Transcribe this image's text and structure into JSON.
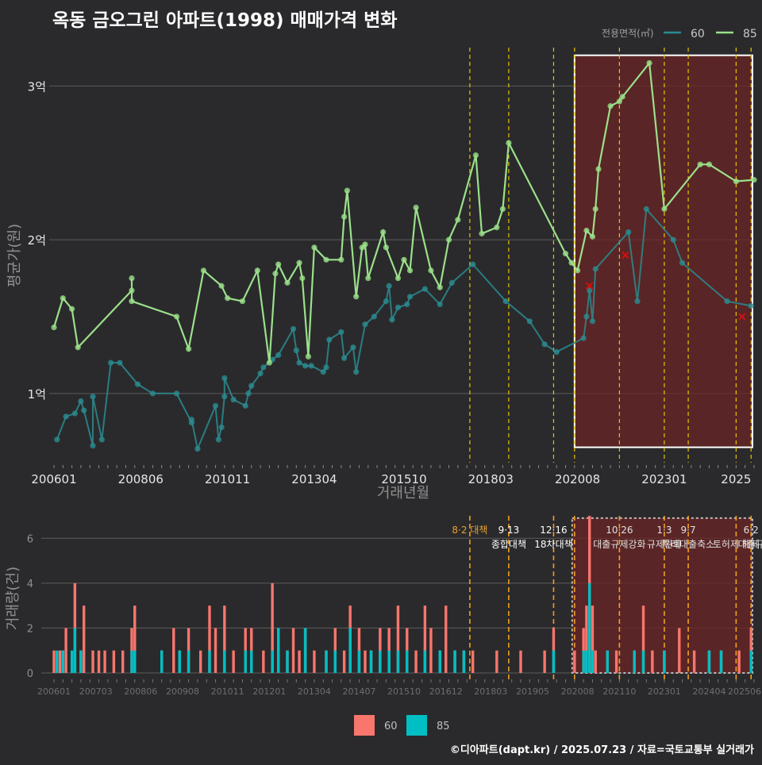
{
  "title": "옥동 금오그린 아파트(1998) 매매가격 변화",
  "footer": "©디아파트(dapt.kr) / 2025.07.23 / 자료=국토교통부 실거래가",
  "colors": {
    "bg": "#2a2a2c",
    "grid": "#5c5c5c",
    "s60": "#2a8c91",
    "s85": "#9be08a",
    "vol60": "#f8766d",
    "vol85": "#00bfc4",
    "policy": "#e5c400",
    "policy_low": "#f0a020",
    "highlight": "#6b2424",
    "marker": "#d01010"
  },
  "chart_data": [
    {
      "type": "line",
      "title": "",
      "xlabel": "거래년월",
      "ylabel": "평균가(원)",
      "legend": {
        "title": "전용면적(㎡)",
        "entries": [
          "60",
          "85"
        ],
        "position": "top-right"
      },
      "x_ticks": [
        "200601",
        "200806",
        "201011",
        "201304",
        "201510",
        "201803",
        "202008",
        "202301",
        "2025"
      ],
      "y_ticks": [
        {
          "value": 1.0,
          "label": "1억"
        },
        {
          "value": 2.0,
          "label": "2억"
        },
        {
          "value": 3.0,
          "label": "3억"
        }
      ],
      "ylim": [
        0.55,
        3.25
      ],
      "policy_dates": [
        "2017.08",
        "2018.09",
        "2019.12",
        "2020.07",
        "2021.10",
        "2023.01",
        "2023.09",
        "2025.01",
        "2025.06"
      ],
      "highlight_period": [
        "2020.07",
        "2025.07"
      ],
      "series": [
        {
          "name": "60",
          "points": [
            [
              "2006.02",
              0.7
            ],
            [
              "2006.05",
              0.85
            ],
            [
              "2006.08",
              0.87
            ],
            [
              "2006.10",
              0.95
            ],
            [
              "2006.11",
              0.89
            ],
            [
              "2007.02",
              0.66
            ],
            [
              "2007.02",
              0.98
            ],
            [
              "2007.05",
              0.7
            ],
            [
              "2007.08",
              1.2
            ],
            [
              "2007.11",
              1.2
            ],
            [
              "2008.05",
              1.06
            ],
            [
              "2008.10",
              1.0
            ],
            [
              "2009.06",
              1.0
            ],
            [
              "2009.11",
              0.81
            ],
            [
              "2009.11",
              0.83
            ],
            [
              "2010.01",
              0.64
            ],
            [
              "2010.07",
              0.92
            ],
            [
              "2010.08",
              0.7
            ],
            [
              "2010.09",
              0.78
            ],
            [
              "2010.10",
              0.98
            ],
            [
              "2010.10",
              1.1
            ],
            [
              "2011.01",
              0.96
            ],
            [
              "2011.05",
              0.92
            ],
            [
              "2011.06",
              1.0
            ],
            [
              "2011.07",
              1.05
            ],
            [
              "2011.10",
              1.13
            ],
            [
              "2011.11",
              1.17
            ],
            [
              "2012.02",
              1.22
            ],
            [
              "2012.04",
              1.25
            ],
            [
              "2012.09",
              1.42
            ],
            [
              "2012.10",
              1.28
            ],
            [
              "2012.11",
              1.2
            ],
            [
              "2013.01",
              1.18
            ],
            [
              "2013.03",
              1.18
            ],
            [
              "2013.07",
              1.14
            ],
            [
              "2013.08",
              1.17
            ],
            [
              "2013.09",
              1.35
            ],
            [
              "2014.01",
              1.4
            ],
            [
              "2014.02",
              1.23
            ],
            [
              "2014.05",
              1.3
            ],
            [
              "2014.06",
              1.14
            ],
            [
              "2014.09",
              1.45
            ],
            [
              "2014.12",
              1.5
            ],
            [
              "2015.04",
              1.6
            ],
            [
              "2015.05",
              1.7
            ],
            [
              "2015.06",
              1.48
            ],
            [
              "2015.08",
              1.56
            ],
            [
              "2015.11",
              1.58
            ],
            [
              "2015.12",
              1.63
            ],
            [
              "2016.05",
              1.68
            ],
            [
              "2016.10",
              1.58
            ],
            [
              "2017.02",
              1.72
            ],
            [
              "2017.09",
              1.84
            ],
            [
              "2018.08",
              1.6
            ],
            [
              "2019.04",
              1.47
            ],
            [
              "2019.09",
              1.32
            ],
            [
              "2020.01",
              1.27
            ],
            [
              "2020.10",
              1.36
            ],
            [
              "2020.11",
              1.5
            ],
            [
              "2020.12",
              1.67
            ],
            [
              "2021.01",
              1.47
            ],
            [
              "2021.02",
              1.81
            ],
            [
              "2022.01",
              2.05
            ],
            [
              "2022.04",
              1.6
            ],
            [
              "2022.07",
              2.2
            ],
            [
              "2023.04",
              2.0
            ],
            [
              "2023.07",
              1.85
            ],
            [
              "2024.10",
              1.6
            ],
            [
              "2025.06",
              1.57
            ]
          ]
        },
        {
          "name": "85",
          "points": [
            [
              "2006.01",
              1.43
            ],
            [
              "2006.04",
              1.62
            ],
            [
              "2006.07",
              1.55
            ],
            [
              "2006.09",
              1.3
            ],
            [
              "2008.03",
              1.67
            ],
            [
              "2008.03",
              1.75
            ],
            [
              "2008.03",
              1.6
            ],
            [
              "2009.06",
              1.5
            ],
            [
              "2009.10",
              1.29
            ],
            [
              "2010.03",
              1.8
            ],
            [
              "2010.09",
              1.7
            ],
            [
              "2010.11",
              1.62
            ],
            [
              "2011.04",
              1.6
            ],
            [
              "2011.09",
              1.8
            ],
            [
              "2012.01",
              1.2
            ],
            [
              "2012.03",
              1.78
            ],
            [
              "2012.04",
              1.84
            ],
            [
              "2012.07",
              1.72
            ],
            [
              "2012.11",
              1.85
            ],
            [
              "2012.12",
              1.75
            ],
            [
              "2013.02",
              1.24
            ],
            [
              "2013.04",
              1.95
            ],
            [
              "2013.08",
              1.87
            ],
            [
              "2014.01",
              1.87
            ],
            [
              "2014.02",
              2.15
            ],
            [
              "2014.03",
              2.32
            ],
            [
              "2014.06",
              1.63
            ],
            [
              "2014.08",
              1.95
            ],
            [
              "2014.09",
              1.97
            ],
            [
              "2014.10",
              1.75
            ],
            [
              "2015.03",
              2.05
            ],
            [
              "2015.04",
              1.95
            ],
            [
              "2015.08",
              1.75
            ],
            [
              "2015.10",
              1.87
            ],
            [
              "2015.12",
              1.8
            ],
            [
              "2016.02",
              2.21
            ],
            [
              "2016.07",
              1.8
            ],
            [
              "2016.10",
              1.69
            ],
            [
              "2017.01",
              2.0
            ],
            [
              "2017.04",
              2.13
            ],
            [
              "2017.10",
              2.55
            ],
            [
              "2017.12",
              2.04
            ],
            [
              "2018.05",
              2.08
            ],
            [
              "2018.07",
              2.2
            ],
            [
              "2018.09",
              2.63
            ],
            [
              "2020.04",
              1.91
            ],
            [
              "2020.06",
              1.85
            ],
            [
              "2020.08",
              1.8
            ],
            [
              "2020.11",
              2.06
            ],
            [
              "2021.01",
              2.02
            ],
            [
              "2021.02",
              2.2
            ],
            [
              "2021.03",
              2.46
            ],
            [
              "2021.07",
              2.87
            ],
            [
              "2021.10",
              2.9
            ],
            [
              "2021.11",
              2.93
            ],
            [
              "2022.08",
              3.15
            ],
            [
              "2023.01",
              2.2
            ],
            [
              "2024.01",
              2.49
            ],
            [
              "2024.04",
              2.49
            ],
            [
              "2025.01",
              2.38
            ],
            [
              "2025.07",
              2.39
            ]
          ]
        }
      ],
      "markers": [
        [
          "2020.12",
          1.7
        ],
        [
          "2021.12",
          1.9
        ],
        [
          "2025.03",
          1.5
        ]
      ]
    },
    {
      "type": "bar",
      "title": "",
      "xlabel": "",
      "ylabel": "거래량(건)",
      "x_ticks": [
        "200601",
        "200703",
        "200806",
        "200908",
        "201011",
        "201201",
        "201304",
        "201407",
        "201510",
        "201612",
        "201803",
        "201905",
        "202008",
        "202110",
        "202301",
        "202404",
        "202506"
      ],
      "y_ticks": [
        0,
        2,
        4,
        6
      ],
      "ylim": [
        0,
        7
      ],
      "legend": {
        "entries": [
          "60",
          "85"
        ],
        "position": "bottom"
      },
      "series_names": [
        "60",
        "85"
      ],
      "bars": [
        [
          "2006.01",
          1,
          0
        ],
        [
          "2006.02",
          0,
          1
        ],
        [
          "2006.03",
          1,
          0
        ],
        [
          "2006.04",
          1,
          1
        ],
        [
          "2006.05",
          2,
          0
        ],
        [
          "2006.07",
          0,
          1
        ],
        [
          "2006.08",
          4,
          2
        ],
        [
          "2006.10",
          1,
          1
        ],
        [
          "2006.11",
          3,
          0
        ],
        [
          "2007.02",
          1,
          0
        ],
        [
          "2007.04",
          1,
          0
        ],
        [
          "2007.06",
          1,
          0
        ],
        [
          "2007.09",
          1,
          0
        ],
        [
          "2007.12",
          1,
          0
        ],
        [
          "2008.03",
          2,
          1
        ],
        [
          "2008.04",
          3,
          1
        ],
        [
          "2009.01",
          1,
          1
        ],
        [
          "2009.05",
          2,
          0
        ],
        [
          "2009.07",
          1,
          1
        ],
        [
          "2009.10",
          2,
          1
        ],
        [
          "2010.02",
          1,
          0
        ],
        [
          "2010.05",
          3,
          1
        ],
        [
          "2010.07",
          2,
          0
        ],
        [
          "2010.10",
          3,
          1
        ],
        [
          "2011.01",
          1,
          0
        ],
        [
          "2011.05",
          2,
          1
        ],
        [
          "2011.07",
          2,
          1
        ],
        [
          "2011.11",
          1,
          0
        ],
        [
          "2012.02",
          4,
          1
        ],
        [
          "2012.04",
          2,
          2
        ],
        [
          "2012.07",
          1,
          1
        ],
        [
          "2012.09",
          2,
          0
        ],
        [
          "2012.11",
          1,
          0
        ],
        [
          "2013.01",
          2,
          2
        ],
        [
          "2013.04",
          1,
          0
        ],
        [
          "2013.08",
          1,
          1
        ],
        [
          "2013.11",
          2,
          1
        ],
        [
          "2014.02",
          1,
          0
        ],
        [
          "2014.04",
          3,
          2
        ],
        [
          "2014.07",
          2,
          1
        ],
        [
          "2014.09",
          1,
          0
        ],
        [
          "2014.11",
          1,
          1
        ],
        [
          "2015.02",
          2,
          1
        ],
        [
          "2015.05",
          2,
          1
        ],
        [
          "2015.08",
          3,
          1
        ],
        [
          "2015.11",
          2,
          1
        ],
        [
          "2016.02",
          1,
          0
        ],
        [
          "2016.05",
          3,
          1
        ],
        [
          "2016.07",
          2,
          0
        ],
        [
          "2016.10",
          1,
          1
        ],
        [
          "2016.12",
          3,
          0
        ],
        [
          "2017.03",
          1,
          1
        ],
        [
          "2017.06",
          1,
          1
        ],
        [
          "2017.09",
          1,
          0
        ],
        [
          "2018.05",
          1,
          0
        ],
        [
          "2019.01",
          1,
          0
        ],
        [
          "2019.09",
          1,
          0
        ],
        [
          "2019.12",
          2,
          1
        ],
        [
          "2020.07",
          1,
          0
        ],
        [
          "2020.10",
          2,
          1
        ],
        [
          "2020.11",
          3,
          1
        ],
        [
          "2020.12",
          7,
          4
        ],
        [
          "2021.01",
          3,
          1
        ],
        [
          "2021.02",
          1,
          0
        ],
        [
          "2021.06",
          1,
          1
        ],
        [
          "2021.09",
          1,
          0
        ],
        [
          "2022.03",
          1,
          1
        ],
        [
          "2022.06",
          3,
          1
        ],
        [
          "2022.09",
          1,
          0
        ],
        [
          "2023.01",
          1,
          1
        ],
        [
          "2023.06",
          2,
          0
        ],
        [
          "2023.11",
          1,
          0
        ],
        [
          "2024.04",
          1,
          1
        ],
        [
          "2024.08",
          1,
          1
        ],
        [
          "2025.02",
          1,
          0
        ],
        [
          "2025.06",
          2,
          1
        ]
      ],
      "annotations": [
        {
          "date": "2017.08",
          "lines": [
            "8·2 대책"
          ],
          "color": "#e8a030"
        },
        {
          "date": "2018.09",
          "lines": [
            "9·13",
            "종합대책"
          ],
          "color": "#ffffff"
        },
        {
          "date": "2019.12",
          "lines": [
            "12·16",
            "18차대책"
          ],
          "color": "#ffffff"
        },
        {
          "date": "2021.10",
          "lines": [
            "10·26",
            "대출규제강화"
          ],
          "color": "#e0e0e0"
        },
        {
          "date": "2023.01",
          "lines": [
            "1·3",
            "규제완화"
          ],
          "color": "#e0e0e0"
        },
        {
          "date": "2023.09",
          "lines": [
            "9·7",
            "특례대출축소"
          ],
          "color": "#e0e0e0"
        },
        {
          "date": "2025.01",
          "lines": [
            "",
            "토허제 해제"
          ],
          "color": "#e0e0e0"
        },
        {
          "date": "2025.06",
          "lines": [
            "6·2",
            "대출규"
          ],
          "color": "#e0e0e0"
        }
      ]
    }
  ]
}
